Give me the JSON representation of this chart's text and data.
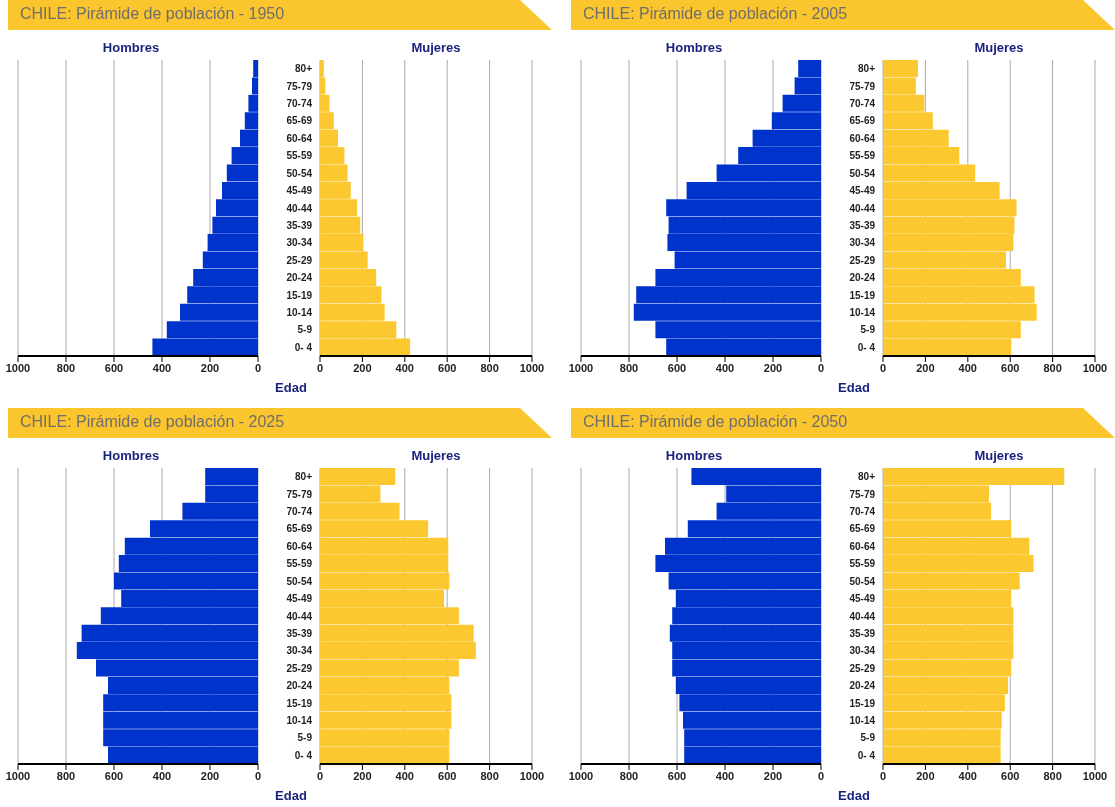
{
  "chart_data": [
    {
      "type": "bar",
      "orientation": "horizontal",
      "title": "CHILE: Pirámide de población  - 1950",
      "categories": [
        null,
        null,
        null,
        null,
        null,
        null,
        null,
        null,
        null,
        null,
        null,
        null,
        null,
        null,
        null,
        null,
        null
      ],
      "series": [
        {
          "name": "Hombres",
          "color": "#0033cc",
          "values": [
            20,
            25,
            40,
            55,
            75,
            110,
            130,
            150,
            175,
            190,
            210,
            230,
            270,
            295,
            325,
            380,
            440
          ]
        }
      ],
      "xlim": [
        1000,
        0
      ],
      "xticks": [
        1000,
        800,
        600,
        400,
        200,
        0
      ],
      "grid": "x"
    },
    {
      "type": "bar",
      "orientation": "horizontal",
      "ylabel": "Edad",
      "categories": [
        "80+",
        "75-79",
        "70-74",
        "65-69",
        "60-64",
        "55-59",
        "50-54",
        "45-49",
        "40-44",
        "35-39",
        "30-34",
        "25-29",
        "20-24",
        "15-19",
        "10-14",
        "5-9",
        "0- 4"
      ],
      "series": [
        {
          "name": "Mujeres",
          "color": "#fcc830",
          "values": [
            18,
            25,
            45,
            65,
            85,
            115,
            130,
            145,
            175,
            190,
            205,
            225,
            265,
            290,
            305,
            360,
            425
          ]
        }
      ],
      "xlim": [
        0,
        1000
      ],
      "xticks": [
        0,
        200,
        400,
        600,
        800,
        1000
      ],
      "grid": "x"
    },
    {
      "type": "bar",
      "orientation": "horizontal",
      "title": "CHILE: Pirámide de población  - 2005",
      "categories": [
        null,
        null,
        null,
        null,
        null,
        null,
        null,
        null,
        null,
        null,
        null,
        null,
        null,
        null,
        null,
        null,
        null
      ],
      "series": [
        {
          "name": "Hombres",
          "color": "#0033cc",
          "values": [
            95,
            110,
            160,
            205,
            285,
            345,
            435,
            560,
            645,
            635,
            640,
            610,
            690,
            770,
            780,
            690,
            645
          ]
        }
      ],
      "xlim": [
        1000,
        0
      ],
      "xticks": [
        1000,
        800,
        600,
        400,
        200,
        0
      ],
      "grid": "x"
    },
    {
      "type": "bar",
      "orientation": "horizontal",
      "ylabel": "Edad",
      "categories": [
        "80+",
        "75-79",
        "70-74",
        "65-69",
        "60-64",
        "55-59",
        "50-54",
        "45-49",
        "40-44",
        "35-39",
        "30-34",
        "25-29",
        "20-24",
        "15-19",
        "10-14",
        "5-9",
        "0- 4"
      ],
      "series": [
        {
          "name": "Mujeres",
          "color": "#fcc830",
          "values": [
            165,
            155,
            195,
            235,
            310,
            360,
            435,
            550,
            630,
            620,
            615,
            580,
            650,
            715,
            725,
            650,
            605
          ]
        }
      ],
      "xlim": [
        0,
        1000
      ],
      "xticks": [
        0,
        200,
        400,
        600,
        800,
        1000
      ],
      "grid": "x"
    },
    {
      "type": "bar",
      "orientation": "horizontal",
      "title": "CHILE: Pirámide de población  - 2025",
      "categories": [
        null,
        null,
        null,
        null,
        null,
        null,
        null,
        null,
        null,
        null,
        null,
        null,
        null,
        null,
        null,
        null,
        null
      ],
      "series": [
        {
          "name": "Hombres",
          "color": "#0033cc",
          "values": [
            220,
            220,
            315,
            450,
            555,
            580,
            600,
            570,
            655,
            735,
            755,
            675,
            625,
            645,
            645,
            645,
            625
          ]
        }
      ],
      "xlim": [
        1000,
        0
      ],
      "xticks": [
        1000,
        800,
        600,
        400,
        200,
        0
      ],
      "grid": "x"
    },
    {
      "type": "bar",
      "orientation": "horizontal",
      "ylabel": "Edad",
      "categories": [
        "80+",
        "75-79",
        "70-74",
        "65-69",
        "60-64",
        "55-59",
        "50-54",
        "45-49",
        "40-44",
        "35-39",
        "30-34",
        "25-29",
        "20-24",
        "15-19",
        "10-14",
        "5-9",
        "0- 4"
      ],
      "series": [
        {
          "name": "Mujeres",
          "color": "#fcc830",
          "values": [
            355,
            285,
            375,
            510,
            605,
            605,
            610,
            585,
            655,
            725,
            735,
            655,
            610,
            620,
            620,
            610,
            610
          ]
        }
      ],
      "xlim": [
        0,
        1000
      ],
      "xticks": [
        0,
        200,
        400,
        600,
        800,
        1000
      ],
      "grid": "x"
    },
    {
      "type": "bar",
      "orientation": "horizontal",
      "title": "CHILE: Pirámide de población  - 2050",
      "categories": [
        null,
        null,
        null,
        null,
        null,
        null,
        null,
        null,
        null,
        null,
        null,
        null,
        null,
        null,
        null,
        null,
        null
      ],
      "series": [
        {
          "name": "Hombres",
          "color": "#0033cc",
          "values": [
            540,
            395,
            435,
            555,
            650,
            690,
            635,
            605,
            620,
            630,
            620,
            620,
            605,
            590,
            575,
            570,
            570
          ]
        }
      ],
      "xlim": [
        1000,
        0
      ],
      "xticks": [
        1000,
        800,
        600,
        400,
        200,
        0
      ],
      "grid": "x"
    },
    {
      "type": "bar",
      "orientation": "horizontal",
      "ylabel": "Edad",
      "categories": [
        "80+",
        "75-79",
        "70-74",
        "65-69",
        "60-64",
        "55-59",
        "50-54",
        "45-49",
        "40-44",
        "35-39",
        "30-34",
        "25-29",
        "20-24",
        "15-19",
        "10-14",
        "5-9",
        "0- 4"
      ],
      "series": [
        {
          "name": "Mujeres",
          "color": "#fcc830",
          "values": [
            855,
            500,
            510,
            605,
            690,
            710,
            645,
            605,
            615,
            615,
            615,
            605,
            590,
            575,
            560,
            555,
            555
          ]
        }
      ],
      "xlim": [
        0,
        1000
      ],
      "xticks": [
        0,
        200,
        400,
        600,
        800,
        1000
      ],
      "grid": "x"
    }
  ]
}
